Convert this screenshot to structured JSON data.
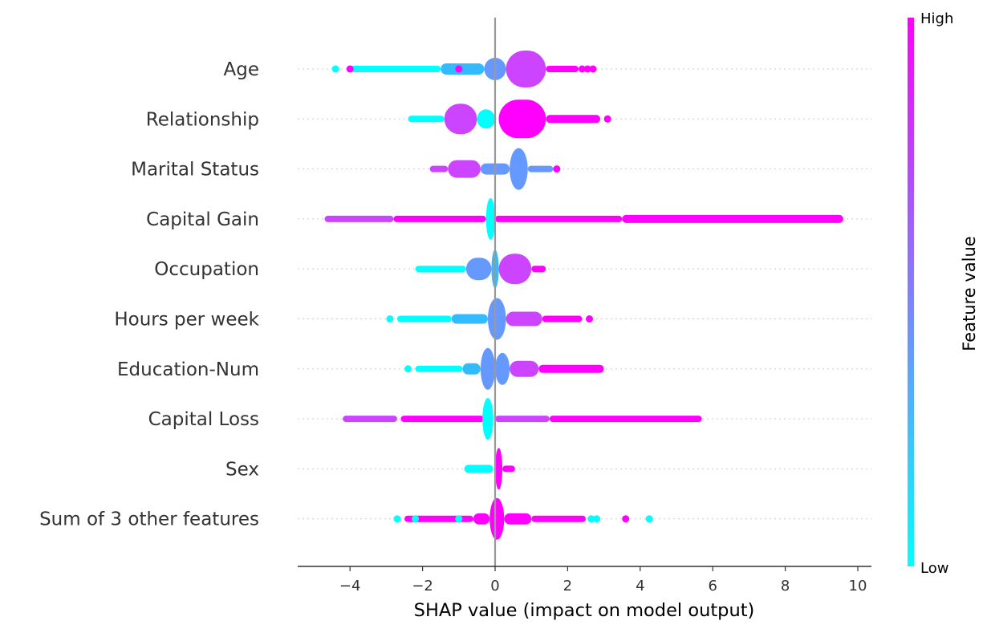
{
  "chart_data": {
    "type": "scatter",
    "subtype": "shap_beeswarm",
    "title": "",
    "xlabel": "SHAP value (impact on model output)",
    "ylabel": "",
    "xlim": [
      -5.4,
      10.35
    ],
    "xticks": [
      -4,
      -2,
      0,
      2,
      4,
      6,
      8,
      10
    ],
    "xtick_labels": [
      "−4",
      "−2",
      "0",
      "2",
      "4",
      "6",
      "8",
      "10"
    ],
    "grid": "dotted horizontal per feature",
    "colorbar": {
      "title": "Feature value",
      "high_label": "High",
      "low_label": "Low",
      "high_color": "#ff00ff",
      "low_color": "#00ffff",
      "colormap": "cool"
    },
    "colors": {
      "low": "#00ffff",
      "mid_low": "#33bbff",
      "mid": "#6699ff",
      "mid_high": "#cc44ff",
      "high": "#ff00ff",
      "axis": "#333333",
      "zero_line": "#999999"
    },
    "features": [
      {
        "name": "Age",
        "min": -4.4,
        "max": 2.7,
        "segments": [
          {
            "x0": -4.0,
            "x1": -1.5,
            "h": 8,
            "color": "low"
          },
          {
            "x0": -1.5,
            "x1": -0.3,
            "h": 14,
            "color": "mid_low"
          },
          {
            "x0": -0.3,
            "x1": 0.3,
            "h": 28,
            "color": "mid"
          },
          {
            "x0": 0.3,
            "x1": 1.4,
            "h": 46,
            "color": "mid_high"
          },
          {
            "x0": 1.4,
            "x1": 2.3,
            "h": 8,
            "color": "high"
          }
        ],
        "points": [
          {
            "x": -4.4,
            "color": "low"
          },
          {
            "x": -4.0,
            "color": "high"
          },
          {
            "x": -1.0,
            "color": "high"
          },
          {
            "x": 2.4,
            "color": "high"
          },
          {
            "x": 2.55,
            "color": "high"
          },
          {
            "x": 2.7,
            "color": "high"
          }
        ]
      },
      {
        "name": "Relationship",
        "min": -2.4,
        "max": 3.1,
        "segments": [
          {
            "x0": -2.4,
            "x1": -1.4,
            "h": 8,
            "color": "low"
          },
          {
            "x0": -1.4,
            "x1": -0.5,
            "h": 38,
            "color": "mid_high"
          },
          {
            "x0": -0.5,
            "x1": 0.0,
            "h": 24,
            "color": "low"
          },
          {
            "x0": 0.1,
            "x1": 1.4,
            "h": 48,
            "color": "high"
          },
          {
            "x0": 1.4,
            "x1": 2.9,
            "h": 10,
            "color": "high"
          }
        ],
        "points": [
          {
            "x": 3.1,
            "color": "high"
          }
        ]
      },
      {
        "name": "Marital Status",
        "min": -1.8,
        "max": 1.7,
        "segments": [
          {
            "x0": -1.8,
            "x1": -1.3,
            "h": 8,
            "color": "mid_high"
          },
          {
            "x0": -1.3,
            "x1": -0.4,
            "h": 22,
            "color": "mid_high"
          },
          {
            "x0": -0.4,
            "x1": 0.4,
            "h": 14,
            "color": "mid"
          },
          {
            "x0": 0.4,
            "x1": 0.9,
            "h": 52,
            "color": "mid"
          },
          {
            "x0": 0.9,
            "x1": 1.6,
            "h": 8,
            "color": "mid"
          }
        ],
        "points": [
          {
            "x": 1.7,
            "color": "high"
          }
        ]
      },
      {
        "name": "Capital Gain",
        "min": -4.7,
        "max": 9.6,
        "segments": [
          {
            "x0": -4.7,
            "x1": -2.8,
            "h": 8,
            "color": "mid_high"
          },
          {
            "x0": -2.8,
            "x1": -0.25,
            "h": 8,
            "color": "high"
          },
          {
            "x0": -0.25,
            "x1": 0.0,
            "h": 52,
            "color": "low"
          },
          {
            "x0": 0.0,
            "x1": 3.5,
            "h": 8,
            "color": "high"
          },
          {
            "x0": 3.5,
            "x1": 9.6,
            "h": 10,
            "color": "high"
          }
        ],
        "points": []
      },
      {
        "name": "Occupation",
        "min": -2.2,
        "max": 1.4,
        "segments": [
          {
            "x0": -2.2,
            "x1": -0.8,
            "h": 8,
            "color": "low"
          },
          {
            "x0": -0.8,
            "x1": -0.1,
            "h": 28,
            "color": "mid"
          },
          {
            "x0": -0.1,
            "x1": 0.1,
            "h": 48,
            "color": "mid_low"
          },
          {
            "x0": 0.1,
            "x1": 1.0,
            "h": 38,
            "color": "mid_high"
          },
          {
            "x0": 1.0,
            "x1": 1.4,
            "h": 8,
            "color": "high"
          }
        ],
        "points": []
      },
      {
        "name": "Hours per week",
        "min": -2.9,
        "max": 2.6,
        "segments": [
          {
            "x0": -2.7,
            "x1": -1.2,
            "h": 8,
            "color": "low"
          },
          {
            "x0": -1.2,
            "x1": -0.2,
            "h": 12,
            "color": "mid_low"
          },
          {
            "x0": -0.2,
            "x1": 0.3,
            "h": 52,
            "color": "mid"
          },
          {
            "x0": 0.3,
            "x1": 1.3,
            "h": 18,
            "color": "mid_high"
          },
          {
            "x0": 1.3,
            "x1": 2.4,
            "h": 8,
            "color": "high"
          }
        ],
        "points": [
          {
            "x": -2.9,
            "color": "low"
          },
          {
            "x": 2.6,
            "color": "high"
          }
        ]
      },
      {
        "name": "Education-Num",
        "min": -2.4,
        "max": 3.1,
        "segments": [
          {
            "x0": -2.2,
            "x1": -0.9,
            "h": 8,
            "color": "low"
          },
          {
            "x0": -0.9,
            "x1": -0.4,
            "h": 14,
            "color": "mid_low"
          },
          {
            "x0": -0.4,
            "x1": 0.0,
            "h": 52,
            "color": "mid"
          },
          {
            "x0": 0.0,
            "x1": 0.4,
            "h": 40,
            "color": "mid"
          },
          {
            "x0": 0.4,
            "x1": 1.2,
            "h": 20,
            "color": "mid_high"
          },
          {
            "x0": 1.2,
            "x1": 3.0,
            "h": 10,
            "color": "high"
          }
        ],
        "points": [
          {
            "x": -2.4,
            "color": "low"
          }
        ]
      },
      {
        "name": "Capital Loss",
        "min": -4.2,
        "max": 5.7,
        "segments": [
          {
            "x0": -4.2,
            "x1": -2.7,
            "h": 8,
            "color": "mid_high"
          },
          {
            "x0": -2.6,
            "x1": -0.3,
            "h": 8,
            "color": "high"
          },
          {
            "x0": -0.35,
            "x1": -0.05,
            "h": 52,
            "color": "low"
          },
          {
            "x0": 0.0,
            "x1": 1.5,
            "h": 8,
            "color": "mid_high"
          },
          {
            "x0": 1.5,
            "x1": 5.7,
            "h": 8,
            "color": "high"
          }
        ],
        "points": []
      },
      {
        "name": "Sex",
        "min": -0.85,
        "max": 0.55,
        "segments": [
          {
            "x0": -0.85,
            "x1": -0.05,
            "h": 10,
            "color": "low"
          },
          {
            "x0": 0.0,
            "x1": 0.2,
            "h": 52,
            "color": "high"
          },
          {
            "x0": 0.2,
            "x1": 0.55,
            "h": 8,
            "color": "high"
          }
        ],
        "points": []
      },
      {
        "name": "Sum of 3 other features",
        "min": -2.7,
        "max": 4.25,
        "segments": [
          {
            "x0": -2.5,
            "x1": -0.6,
            "h": 8,
            "color": "high"
          },
          {
            "x0": -0.6,
            "x1": -0.15,
            "h": 14,
            "color": "high"
          },
          {
            "x0": -0.15,
            "x1": 0.25,
            "h": 52,
            "color": "high"
          },
          {
            "x0": 0.25,
            "x1": 1.0,
            "h": 14,
            "color": "high"
          },
          {
            "x0": 1.0,
            "x1": 2.5,
            "h": 8,
            "color": "high"
          }
        ],
        "points": [
          {
            "x": -2.7,
            "color": "low"
          },
          {
            "x": -2.2,
            "color": "low"
          },
          {
            "x": -1.0,
            "color": "low"
          },
          {
            "x": 2.65,
            "color": "low"
          },
          {
            "x": 2.8,
            "color": "low"
          },
          {
            "x": 3.6,
            "color": "high"
          },
          {
            "x": 4.25,
            "color": "low"
          }
        ]
      }
    ]
  }
}
